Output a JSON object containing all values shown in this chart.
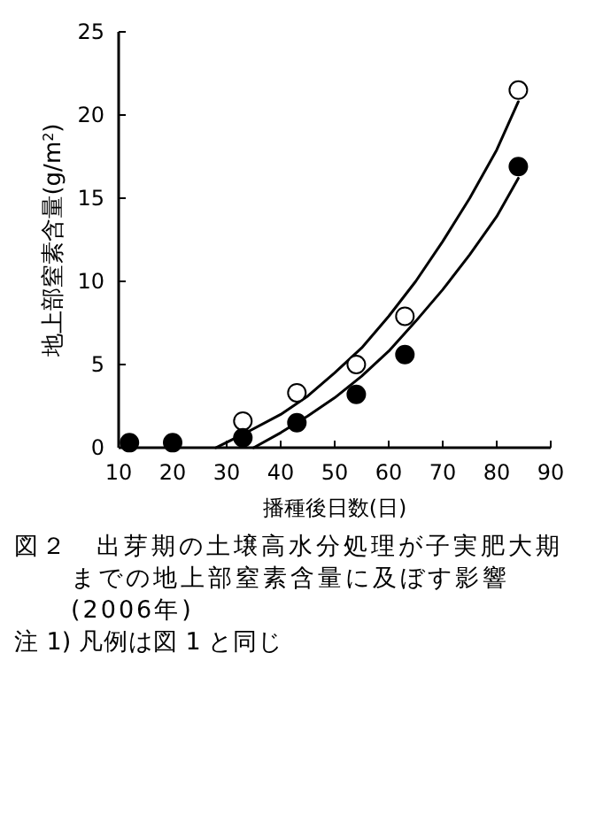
{
  "chart_data": {
    "type": "scatter",
    "title": "図２　出芽期の土壌高水分処理が子実肥大期までの地上部窒素含量に及ぼす影響(2006年)",
    "xlabel": "播種後日数(日)",
    "ylabel": "地上部窒素含量(g/m$^{2}$)",
    "annotations": [
      "注 1) 凡例は図 1 と同じ"
    ],
    "xlim": [
      10,
      90
    ],
    "xticks": [
      10,
      20,
      30,
      40,
      50,
      60,
      70,
      80,
      90
    ],
    "ylim": [
      0,
      25
    ],
    "yticks": [
      0,
      5,
      10,
      15,
      20,
      25
    ],
    "grid": false,
    "marker": "circle",
    "series": [
      {
        "type": "line",
        "color": "#000000",
        "marker": "none",
        "x": [
          28,
          33,
          40,
          45,
          50,
          55,
          60,
          65,
          70,
          75,
          80,
          84
        ],
        "values": [
          0,
          0.8,
          2.0,
          3.1,
          4.5,
          6.0,
          7.9,
          10.0,
          12.4,
          15.0,
          17.9,
          20.8
        ]
      },
      {
        "type": "line",
        "color": "#000000",
        "marker": "none",
        "x": [
          35,
          40,
          45,
          50,
          55,
          60,
          65,
          70,
          75,
          80,
          84
        ],
        "values": [
          0,
          0.9,
          1.9,
          3.0,
          4.3,
          5.8,
          7.6,
          9.5,
          11.6,
          13.9,
          16.2
        ]
      },
      {
        "color": "#ffffff",
        "x": [
          33,
          43,
          54,
          63,
          84
        ],
        "values": [
          1.6,
          3.3,
          5.0,
          7.9,
          21.5
        ]
      },
      {
        "color": "#000000",
        "x": [
          12,
          20,
          33,
          43,
          54,
          63,
          84
        ],
        "values": [
          0.3,
          0.3,
          0.6,
          1.5,
          3.2,
          5.6,
          16.9
        ]
      }
    ]
  }
}
